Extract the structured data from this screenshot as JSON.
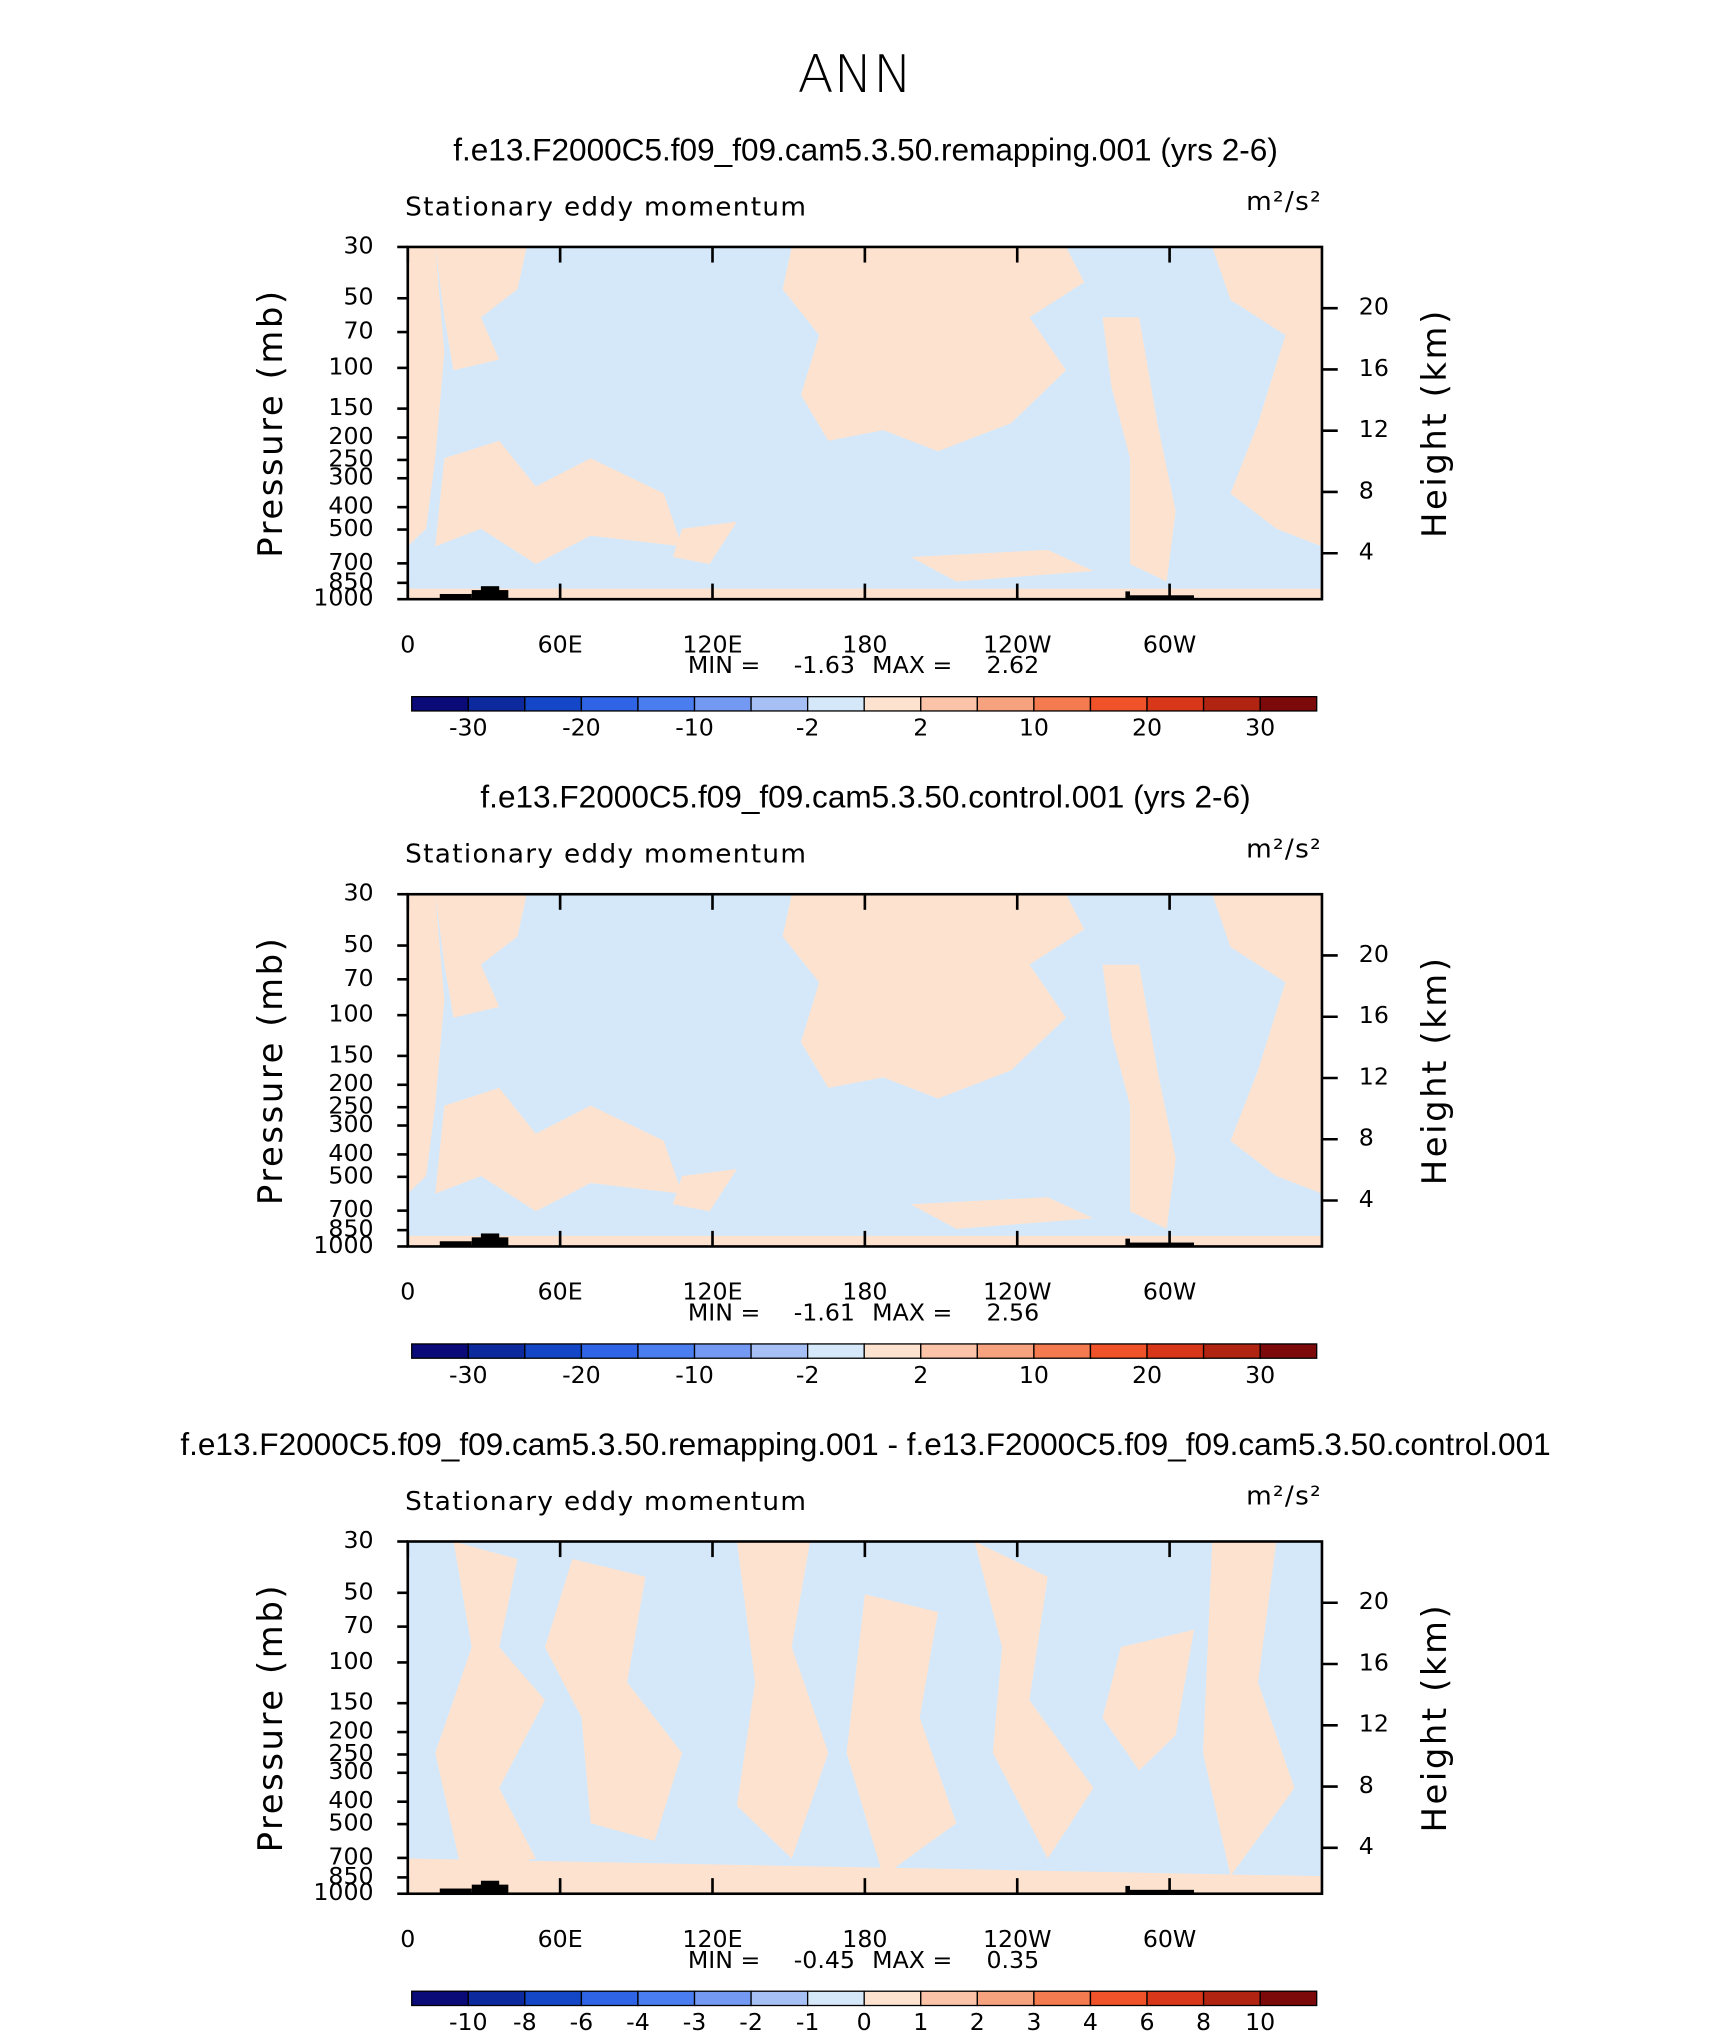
{
  "title": "ANN",
  "chart_data": [
    {
      "type": "contour",
      "title": "f.e13.F2000C5.f09_f09.cam5.3.50.remapping.001 (yrs 2-6)",
      "subtitle": "Stationary eddy momentum",
      "units": "m²/s²",
      "ylabel": "Pressure (mb)",
      "y2label": "Height (km)",
      "ylog": true,
      "ylim": [
        1000,
        30
      ],
      "yticks": [
        30,
        50,
        70,
        100,
        150,
        200,
        250,
        300,
        400,
        500,
        700,
        850,
        1000
      ],
      "y2lim": [
        1,
        24
      ],
      "y2ticks": [
        4,
        8,
        12,
        16,
        20
      ],
      "xlim": [
        0,
        360
      ],
      "xticks": [
        0,
        {
          "value": 60,
          "label": "60E"
        },
        {
          "value": 120,
          "label": "120E"
        },
        180,
        {
          "value": 240,
          "label": "120W"
        },
        {
          "value": 300,
          "label": "60W"
        }
      ],
      "min_label": "MIN =",
      "min": -1.63,
      "max_label": "MAX =",
      "max": 2.62,
      "colorbar": {
        "colors": [
          "#0a0a78",
          "#0c2a9e",
          "#1447c8",
          "#2f64e6",
          "#4a7df0",
          "#7399f2",
          "#a6c0f5",
          "#d5e8fa",
          "#fde3cf",
          "#fbc4a8",
          "#f7a27e",
          "#f47a50",
          "#f0522a",
          "#d9371a",
          "#b22412",
          "#7d0a0a"
        ],
        "levels": [
          -30,
          null,
          -20,
          null,
          -10,
          null,
          -2,
          null,
          2,
          null,
          10,
          null,
          20,
          null,
          30
        ]
      }
    },
    {
      "type": "contour",
      "title": "f.e13.F2000C5.f09_f09.cam5.3.50.control.001 (yrs 2-6)",
      "subtitle": "Stationary eddy momentum",
      "units": "m²/s²",
      "ylabel": "Pressure (mb)",
      "y2label": "Height (km)",
      "ylog": true,
      "ylim": [
        1000,
        30
      ],
      "yticks": [
        30,
        50,
        70,
        100,
        150,
        200,
        250,
        300,
        400,
        500,
        700,
        850,
        1000
      ],
      "y2lim": [
        1,
        24
      ],
      "y2ticks": [
        4,
        8,
        12,
        16,
        20
      ],
      "xlim": [
        0,
        360
      ],
      "xticks": [
        0,
        {
          "value": 60,
          "label": "60E"
        },
        {
          "value": 120,
          "label": "120E"
        },
        180,
        {
          "value": 240,
          "label": "120W"
        },
        {
          "value": 300,
          "label": "60W"
        }
      ],
      "min_label": "MIN =",
      "min": -1.61,
      "max_label": "MAX =",
      "max": 2.56,
      "colorbar": {
        "colors": [
          "#0a0a78",
          "#0c2a9e",
          "#1447c8",
          "#2f64e6",
          "#4a7df0",
          "#7399f2",
          "#a6c0f5",
          "#d5e8fa",
          "#fde3cf",
          "#fbc4a8",
          "#f7a27e",
          "#f47a50",
          "#f0522a",
          "#d9371a",
          "#b22412",
          "#7d0a0a"
        ],
        "levels": [
          -30,
          null,
          -20,
          null,
          -10,
          null,
          -2,
          null,
          2,
          null,
          10,
          null,
          20,
          null,
          30
        ]
      }
    },
    {
      "type": "contour",
      "title": "f.e13.F2000C5.f09_f09.cam5.3.50.remapping.001 - f.e13.F2000C5.f09_f09.cam5.3.50.control.001",
      "subtitle": "Stationary eddy momentum",
      "units": "m²/s²",
      "ylabel": "Pressure (mb)",
      "y2label": "Height (km)",
      "ylog": true,
      "ylim": [
        1000,
        30
      ],
      "yticks": [
        30,
        50,
        70,
        100,
        150,
        200,
        250,
        300,
        400,
        500,
        700,
        850,
        1000
      ],
      "y2lim": [
        1,
        24
      ],
      "y2ticks": [
        4,
        8,
        12,
        16,
        20
      ],
      "xlim": [
        0,
        360
      ],
      "xticks": [
        0,
        {
          "value": 60,
          "label": "60E"
        },
        {
          "value": 120,
          "label": "120E"
        },
        180,
        {
          "value": 240,
          "label": "120W"
        },
        {
          "value": 300,
          "label": "60W"
        }
      ],
      "min_label": "MIN =",
      "min": -0.45,
      "max_label": "MAX =",
      "max": 0.35,
      "colorbar": {
        "colors": [
          "#0a0a78",
          "#0c2a9e",
          "#1447c8",
          "#2f64e6",
          "#4a7df0",
          "#7399f2",
          "#a6c0f5",
          "#d5e8fa",
          "#fde3cf",
          "#fbc4a8",
          "#f7a27e",
          "#f47a50",
          "#f0522a",
          "#d9371a",
          "#b22412",
          "#7d0a0a"
        ],
        "levels": [
          -10,
          -8,
          -6,
          -4,
          -3,
          -2,
          -1,
          0,
          1,
          2,
          3,
          4,
          6,
          8,
          10
        ]
      }
    }
  ]
}
